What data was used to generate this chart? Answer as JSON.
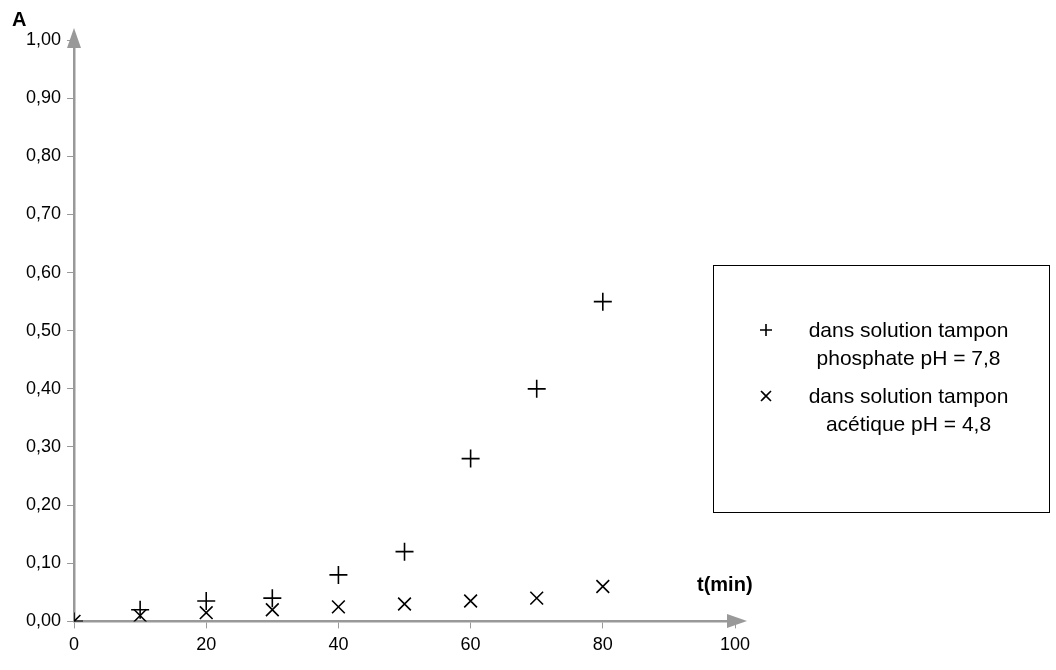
{
  "chart_data": {
    "type": "scatter",
    "xlabel": "t(min)",
    "ylabel": "A",
    "xlim": [
      0,
      100
    ],
    "xticks": [
      0,
      20,
      40,
      60,
      80,
      100
    ],
    "ylim": [
      0,
      1
    ],
    "yticks": [
      {
        "value": 0,
        "label": "0,00"
      },
      {
        "value": 0.1,
        "label": "0,10"
      },
      {
        "value": 0.2,
        "label": "0,20"
      },
      {
        "value": 0.3,
        "label": "0,30"
      },
      {
        "value": 0.4,
        "label": "0,40"
      },
      {
        "value": 0.5,
        "label": "0,50"
      },
      {
        "value": 0.6,
        "label": "0,60"
      },
      {
        "value": 0.7,
        "label": "0,70"
      },
      {
        "value": 0.8,
        "label": "0,80"
      },
      {
        "value": 0.9,
        "label": "0,90"
      },
      {
        "value": 1,
        "label": "1,00"
      }
    ],
    "x": [
      0,
      10,
      20,
      30,
      40,
      50,
      60,
      70,
      80
    ],
    "series": [
      {
        "name": "dans solution tampon phosphate pH = 7,8",
        "color": "#000000",
        "marker": "plus",
        "values": [
          0,
          0.02,
          0.035,
          0.04,
          0.08,
          0.12,
          0.28,
          0.4,
          0.55
        ]
      },
      {
        "name": "dans solution tampon acétique pH = 4,8",
        "color": "#000000",
        "marker": "cross",
        "values": [
          0,
          0.01,
          0.015,
          0.02,
          0.025,
          0.03,
          0.035,
          0.04,
          0.06
        ]
      }
    ],
    "grid": false,
    "legend": "right"
  }
}
